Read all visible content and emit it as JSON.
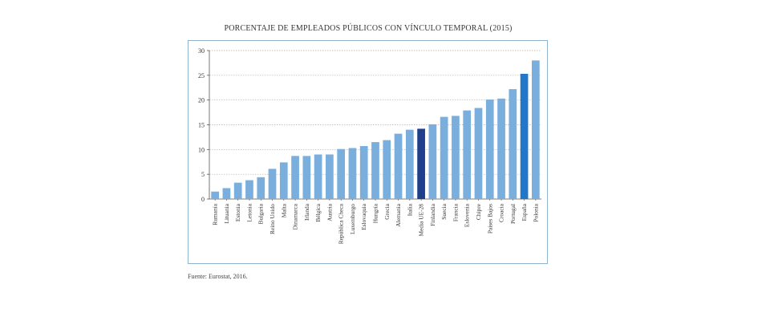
{
  "chart_data": {
    "type": "bar",
    "title": "PORCENTAJE DE EMPLEADOS PÚBLICOS CON VÍNCULO TEMPORAL (2015)",
    "xlabel": "",
    "ylabel": "",
    "ylim": [
      0,
      30
    ],
    "yticks": [
      0,
      5,
      10,
      15,
      20,
      25,
      30
    ],
    "grid": true,
    "categories": [
      "Rumanía",
      "Lituania",
      "Estonia",
      "Letonia",
      "Bulgaria",
      "Reino Unido",
      "Malta",
      "Dinamarca",
      "Irlanda",
      "Bélgica",
      "Austria",
      "República Checa",
      "Luxemburgo",
      "Eslovaquia",
      "Hungría",
      "Grecia",
      "Alemania",
      "Italia",
      "Media UE-28",
      "Finlandia",
      "Suecia",
      "Francia",
      "Eslovenia",
      "Chipre",
      "Países Bajos",
      "Croacia",
      "Portugal",
      "España",
      "Polonia"
    ],
    "values": [
      1.5,
      2.2,
      3.3,
      3.8,
      4.4,
      6.1,
      7.4,
      8.7,
      8.7,
      9.0,
      9.0,
      10.1,
      10.3,
      10.7,
      11.5,
      11.9,
      13.2,
      14.0,
      14.2,
      15.1,
      16.6,
      16.8,
      17.9,
      18.4,
      20.1,
      20.3,
      22.2,
      25.3,
      28.0
    ],
    "colors": {
      "default": "#7aaedd",
      "highlight_average": "#1f3f8c",
      "highlight_spain": "#2277c8",
      "grid": "#b0b0b0",
      "axis": "#555555"
    },
    "highlights": {
      "Media UE-28": "highlight_average",
      "España": "highlight_spain"
    }
  },
  "source": "Fuente: Eurostat, 2016."
}
